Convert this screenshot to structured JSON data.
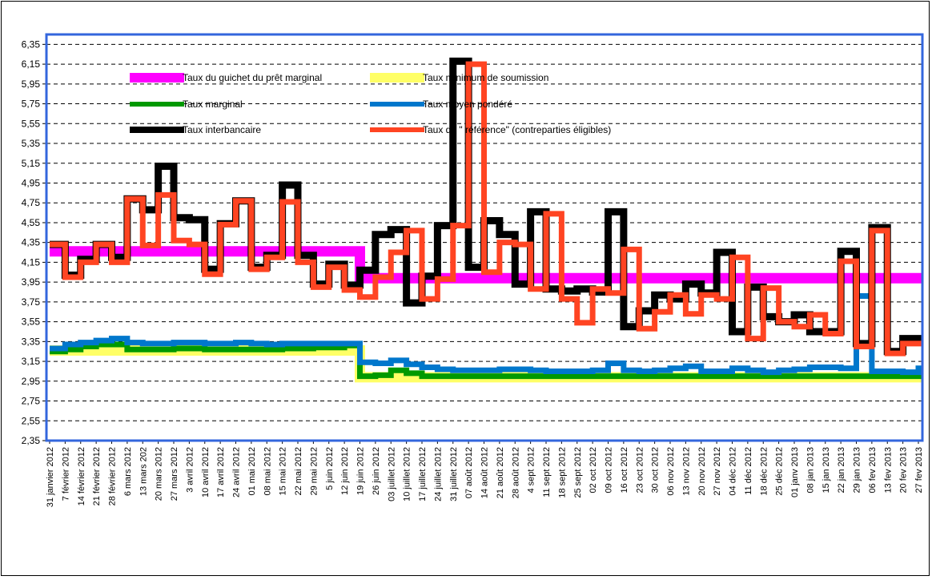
{
  "chart_data": {
    "type": "line",
    "title": "",
    "xlabel": "",
    "ylabel": "",
    "ylim": [
      2.35,
      6.45
    ],
    "y_ticks": [
      "6,35",
      "6,15",
      "5,95",
      "5,75",
      "5,55",
      "5,35",
      "5,15",
      "4,95",
      "4,75",
      "4,55",
      "4,35",
      "4,15",
      "3,95",
      "3,75",
      "3,55",
      "3,35",
      "3,15",
      "2,95",
      "2,75",
      "2,55",
      "2,35"
    ],
    "grid": true,
    "legend_position": "top",
    "categories": [
      "31 janvier 2012",
      "7  février 2012",
      "14 février 2012",
      "21 février 2012",
      "28 février 2012",
      "6 mars 2012",
      "13 mars 202",
      "20 mars 2012",
      "27 mars 2012",
      "3 avril 2012",
      "10 avril 2012",
      "17 avril 2012",
      "24 avril 2012",
      "01 mai 2012",
      "08 mai 2012",
      "15 mai 2012",
      "22 mai 2012",
      "29 mai 2012",
      "5 juin 2012",
      "12 juin 2012",
      "19 juin 2012",
      "26 juin 2012",
      "03 juillet 2012",
      "10 juillet 2012",
      "17 juillet 2012",
      "24 juillet 2012",
      "31 juillet 2012",
      "07 août 2012",
      "14 août 2012",
      "21 août 2012",
      "28 août 2012",
      "4 sept 2012",
      "11 sept 2012",
      "18 sept 2012",
      "25 sept 2012",
      "02 oct 2012",
      "09 oct 2012",
      "16 oct 2012",
      "23 oct 2012",
      "30 oct 2012",
      "06 nov 2012",
      "13 nov 2012",
      "20 nov 2012",
      "27 nov 2012",
      "04 déc 2012",
      "11 déc 2012",
      "18 déc 2012",
      "25 déc 2012",
      "01 janv 2013",
      "08 jan 2013",
      "15 jan 2013",
      "22 jan 2013",
      "29 jan 2013",
      "06 fev 2013",
      "13 fev 2013",
      "20 fev 2013",
      "27 fev 2013"
    ],
    "series": [
      {
        "name": "Taux du guichet du prêt marginal",
        "color": "#ff00ff",
        "width": 13,
        "values": [
          4.26,
          4.26,
          4.26,
          4.26,
          4.26,
          4.26,
          4.26,
          4.26,
          4.26,
          4.26,
          4.26,
          4.26,
          4.26,
          4.26,
          4.26,
          4.26,
          4.26,
          4.26,
          4.26,
          4.26,
          3.99,
          3.99,
          3.99,
          3.99,
          3.99,
          3.99,
          3.99,
          3.99,
          3.99,
          3.99,
          3.99,
          3.99,
          3.99,
          3.99,
          3.99,
          3.99,
          3.99,
          3.99,
          3.99,
          3.99,
          3.99,
          3.99,
          3.99,
          3.99,
          3.99,
          3.99,
          3.99,
          3.99,
          3.99,
          3.99,
          3.99,
          3.99,
          3.99,
          3.99,
          3.99,
          3.99,
          3.99
        ]
      },
      {
        "name": "Taux minimum de soumission",
        "color": "#ffff66",
        "width": 13,
        "values": [
          3.26,
          3.26,
          3.26,
          3.26,
          3.26,
          3.26,
          3.26,
          3.26,
          3.26,
          3.26,
          3.26,
          3.26,
          3.26,
          3.26,
          3.26,
          3.26,
          3.26,
          3.26,
          3.26,
          3.26,
          2.99,
          2.99,
          2.99,
          2.99,
          2.99,
          2.99,
          2.99,
          2.99,
          2.99,
          2.99,
          2.99,
          2.99,
          2.99,
          2.99,
          2.99,
          2.99,
          2.99,
          2.99,
          2.99,
          2.99,
          2.99,
          2.99,
          2.99,
          2.99,
          2.99,
          2.99,
          2.99,
          2.99,
          2.99,
          2.99,
          2.99,
          2.99,
          2.99,
          2.99,
          2.99,
          2.99,
          2.99
        ]
      },
      {
        "name": "Taux marginal",
        "color": "#009900",
        "width": 7,
        "values": [
          3.25,
          3.27,
          3.3,
          3.32,
          3.32,
          3.27,
          3.27,
          3.27,
          3.28,
          3.28,
          3.27,
          3.27,
          3.27,
          3.27,
          3.27,
          3.28,
          3.28,
          3.29,
          3.29,
          3.31,
          3.0,
          3.01,
          3.06,
          3.03,
          3.0,
          3.0,
          3.0,
          3.0,
          3.0,
          3.0,
          3.0,
          3.0,
          3.0,
          3.0,
          3.0,
          3.0,
          3.0,
          3.0,
          3.0,
          3.0,
          3.0,
          3.0,
          3.0,
          3.0,
          3.0,
          3.0,
          3.0,
          3.0,
          3.0,
          3.0,
          3.0,
          3.0,
          3.0,
          3.0,
          3.0,
          3.0,
          3.0
        ]
      },
      {
        "name": "Taux moyen pondéré",
        "color": "#0077cc",
        "width": 7,
        "values": [
          3.28,
          3.32,
          3.34,
          3.36,
          3.38,
          3.34,
          3.33,
          3.33,
          3.34,
          3.34,
          3.33,
          3.33,
          3.34,
          3.33,
          3.32,
          3.33,
          3.33,
          3.33,
          3.33,
          3.33,
          3.14,
          3.13,
          3.16,
          3.12,
          3.09,
          3.07,
          3.06,
          3.06,
          3.06,
          3.07,
          3.07,
          3.06,
          3.05,
          3.05,
          3.05,
          3.06,
          3.13,
          3.06,
          3.05,
          3.06,
          3.08,
          3.1,
          3.05,
          3.05,
          3.08,
          3.06,
          3.04,
          3.06,
          3.07,
          3.09,
          3.09,
          3.08,
          3.81,
          3.05,
          3.05,
          3.04,
          3.08
        ]
      },
      {
        "name": "Taux interbancaire",
        "color": "#000000",
        "width": 9,
        "values": [
          4.33,
          4.02,
          4.18,
          4.33,
          4.2,
          4.79,
          4.68,
          5.12,
          4.6,
          4.58,
          4.08,
          4.54,
          4.77,
          4.1,
          4.22,
          4.93,
          4.22,
          3.93,
          4.13,
          3.92,
          4.07,
          4.43,
          4.48,
          3.74,
          4.01,
          4.52,
          6.18,
          4.1,
          4.57,
          4.43,
          3.93,
          4.66,
          3.88,
          3.86,
          3.88,
          3.85,
          4.66,
          3.5,
          3.66,
          3.82,
          3.78,
          3.93,
          3.84,
          4.25,
          3.45,
          3.9,
          3.6,
          3.55,
          3.62,
          3.45,
          3.45,
          4.26,
          3.33,
          4.5,
          3.25,
          3.38,
          3.36
        ]
      },
      {
        "name": "Taux de \" référence\" (contreparties éligibles)",
        "color": "#ff4422",
        "width": 7,
        "values": [
          4.33,
          4.0,
          4.15,
          4.33,
          4.15,
          4.79,
          4.32,
          4.83,
          4.37,
          4.33,
          4.03,
          4.53,
          4.77,
          4.08,
          4.2,
          4.76,
          4.15,
          3.9,
          4.1,
          3.87,
          3.8,
          4.0,
          4.25,
          4.47,
          3.78,
          3.98,
          4.52,
          6.15,
          4.05,
          4.35,
          4.33,
          3.88,
          4.64,
          3.78,
          3.54,
          3.88,
          3.84,
          4.28,
          3.48,
          3.65,
          3.82,
          3.63,
          3.82,
          3.78,
          4.2,
          3.38,
          3.89,
          3.55,
          3.5,
          3.62,
          3.43,
          4.16,
          3.3,
          4.47,
          3.23,
          3.33,
          3.33
        ]
      }
    ]
  }
}
